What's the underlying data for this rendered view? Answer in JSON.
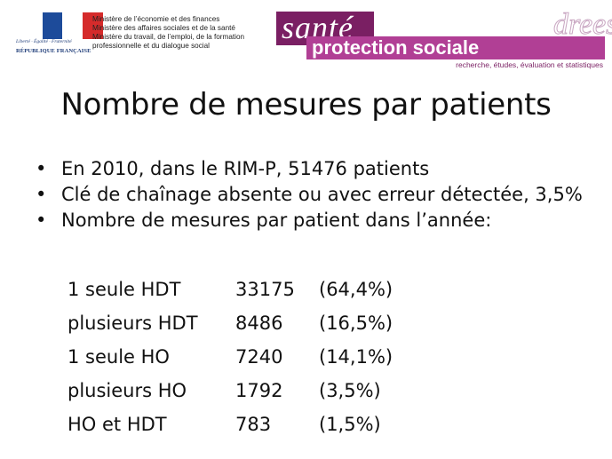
{
  "header": {
    "logo": {
      "motto": "Liberté · Égalité · Fraternité",
      "republic": "RÉPUBLIQUE FRANÇAISE"
    },
    "ministries": [
      "Ministère de l’économie et des finances",
      "Ministère des affaires sociales et de la santé",
      "Ministère du travail, de l’emploi, de la formation",
      "professionnelle et du dialogue social"
    ],
    "banner": {
      "sante": "santé",
      "protection": "protection sociale",
      "drees": "drees",
      "tagline": "recherche, études, évaluation et statistiques"
    }
  },
  "slide": {
    "title": "Nombre de mesures par patients",
    "bullets": [
      "En 2010, dans le RIM-P, 51476 patients",
      "Clé de chaînage absente ou avec erreur détectée, 3,5%",
      "Nombre de mesures par patient dans l’année:"
    ],
    "table": [
      {
        "label": "1 seule HDT",
        "count": "33175",
        "pct": "(64,4%)"
      },
      {
        "label": "plusieurs HDT",
        "count": "8486",
        "pct": "(16,5%)"
      },
      {
        "label": "1 seule HO",
        "count": "7240",
        "pct": "(14,1%)"
      },
      {
        "label": "plusieurs HO",
        "count": "1792",
        "pct": "(3,5%)"
      },
      {
        "label": "HO et HDT",
        "count": "783",
        "pct": "(1,5%)"
      }
    ]
  },
  "colors": {
    "flag_blue": "#1d4b9a",
    "flag_red": "#d52b2b",
    "brand_dark": "#7a1f63",
    "brand_light": "#b13f95"
  }
}
